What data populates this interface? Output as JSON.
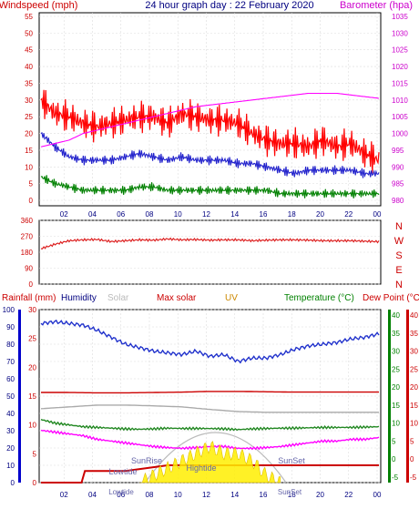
{
  "chart_data": [
    {
      "type": "line",
      "title": "24 hour graph day : 22 February 2020",
      "left_axis_label": "Windspeed (mph)",
      "right_axis_label": "Barometer (hpa)",
      "x_ticks": [
        "02",
        "04",
        "06",
        "08",
        "10",
        "12",
        "14",
        "16",
        "18",
        "20",
        "22",
        "00"
      ],
      "left_ylim": [
        0,
        55
      ],
      "left_ticks": [
        "0",
        "5",
        "10",
        "15",
        "20",
        "25",
        "30",
        "35",
        "40",
        "45",
        "50",
        "55"
      ],
      "right_ylim": [
        980,
        1035
      ],
      "right_ticks": [
        "980",
        "985",
        "990",
        "995",
        "1000",
        "1005",
        "1010",
        "1015",
        "1020",
        "1025",
        "1030",
        "1035"
      ],
      "series": [
        {
          "color": "#ff0000",
          "axis": "left",
          "x": [
            0,
            1,
            2,
            3,
            4,
            5,
            6,
            7,
            8,
            9,
            10,
            11,
            12,
            13,
            14,
            15,
            16,
            17,
            18,
            19,
            20,
            21,
            22,
            23,
            24
          ],
          "y": [
            30,
            26,
            25,
            23,
            22,
            23,
            24,
            25,
            25,
            23,
            26,
            25,
            24,
            24,
            23,
            20,
            18,
            17,
            17,
            16,
            18,
            16,
            17,
            14,
            12
          ]
        },
        {
          "color": "#2222cc",
          "axis": "left",
          "x": [
            0,
            1,
            2,
            3,
            4,
            5,
            6,
            7,
            8,
            9,
            10,
            11,
            12,
            13,
            14,
            15,
            16,
            17,
            18,
            19,
            20,
            21,
            22,
            23,
            24
          ],
          "y": [
            20,
            16,
            13,
            12,
            12,
            12,
            13,
            14,
            13,
            12,
            13,
            12,
            12,
            12,
            11,
            11,
            10,
            9,
            8,
            9,
            9,
            9,
            9,
            8,
            8
          ]
        },
        {
          "color": "#008000",
          "axis": "left",
          "x": [
            0,
            1,
            2,
            3,
            4,
            5,
            6,
            7,
            8,
            9,
            10,
            11,
            12,
            13,
            14,
            15,
            16,
            17,
            18,
            19,
            20,
            21,
            22,
            23,
            24
          ],
          "y": [
            7,
            5,
            4,
            3,
            3,
            3,
            3,
            4,
            4,
            3,
            3,
            3,
            3,
            3,
            3,
            3,
            3,
            2,
            2,
            2,
            2,
            2,
            2,
            2,
            2
          ]
        },
        {
          "color": "#ff00ff",
          "axis": "right",
          "x": [
            0,
            1,
            2,
            3,
            4,
            5,
            6,
            7,
            8,
            9,
            10,
            11,
            12,
            13,
            14,
            15,
            16,
            17,
            18,
            19,
            20,
            21,
            22,
            23,
            24
          ],
          "y": [
            996,
            997,
            998,
            1000,
            1001,
            1002,
            1003,
            1004,
            1005,
            1006,
            1007,
            1008,
            1008.5,
            1009,
            1009.5,
            1010,
            1010.5,
            1011,
            1011.5,
            1012,
            1012,
            1012,
            1011.5,
            1011,
            1010.5
          ]
        }
      ]
    },
    {
      "type": "line",
      "y_ticks": [
        "0",
        "90",
        "180",
        "270",
        "360"
      ],
      "ylim": [
        0,
        360
      ],
      "compass_labels": [
        "N",
        "W",
        "S",
        "E",
        "N"
      ],
      "series": [
        {
          "color": "#dd2222",
          "x": [
            0,
            1,
            2,
            3,
            4,
            5,
            6,
            7,
            8,
            9,
            10,
            11,
            12,
            13,
            14,
            15,
            16,
            17,
            18,
            19,
            20,
            21,
            22,
            23,
            24
          ],
          "y": [
            200,
            225,
            245,
            250,
            252,
            240,
            245,
            250,
            248,
            255,
            250,
            252,
            248,
            250,
            250,
            245,
            248,
            250,
            250,
            248,
            245,
            245,
            245,
            242,
            240
          ]
        }
      ]
    },
    {
      "type": "line",
      "legend": [
        "Rainfall (mm)",
        "Humidity",
        "Solar",
        "Max solar",
        "UV",
        "Temperature (°C)",
        "Dew Point (°C)"
      ],
      "legend_colors": [
        "#cc0000",
        "#000080",
        "#bbbbbb",
        "#cc0000",
        "#cc8800",
        "#008000",
        "#cc0000"
      ],
      "left_ticks": [
        "0",
        "10",
        "20",
        "30",
        "40",
        "50",
        "60",
        "70",
        "80",
        "90",
        "100"
      ],
      "left2_ticks": [
        "0",
        "5",
        "10",
        "15",
        "20",
        "25",
        "30"
      ],
      "right_ticks": [
        "-5",
        "0",
        "5",
        "10",
        "15",
        "20",
        "25",
        "30",
        "35",
        "40"
      ],
      "right2_ticks": [
        "-5",
        "0",
        "5",
        "10",
        "15",
        "20",
        "25",
        "30",
        "35",
        "40"
      ],
      "x_ticks": [
        "02",
        "04",
        "06",
        "08",
        "10",
        "12",
        "14",
        "16",
        "18",
        "20",
        "22",
        "00"
      ],
      "annotations": [
        "Lowtide",
        "SunRise",
        "Hightide",
        "SunSet",
        "Lowtide",
        "SunSet"
      ],
      "series": [
        {
          "name": "Humidity",
          "color": "#2233cc",
          "unit": "%",
          "x": [
            0,
            1,
            2,
            3,
            4,
            5,
            6,
            7,
            8,
            9,
            10,
            11,
            12,
            13,
            14,
            15,
            16,
            17,
            18,
            19,
            20,
            21,
            22,
            23,
            24
          ],
          "y": [
            92,
            93,
            92,
            91,
            88,
            84,
            80,
            78,
            76,
            75,
            74,
            76,
            73,
            74,
            70,
            72,
            72,
            74,
            77,
            79,
            80,
            81,
            83,
            84,
            86
          ]
        },
        {
          "name": "Max solar",
          "color": "#cc0000",
          "unit": "°C",
          "x": [
            0,
            2,
            4,
            6,
            8,
            10,
            12,
            14,
            16,
            18,
            20,
            22,
            24
          ],
          "y": [
            18.5,
            18.5,
            18.4,
            18.4,
            18.5,
            18.6,
            18.8,
            18.8,
            18.7,
            18.6,
            18.6,
            18.6,
            18.6
          ]
        },
        {
          "name": "Solar",
          "color": "#aaaaaa",
          "unit": "°C",
          "x": [
            0,
            2,
            4,
            6,
            8,
            10,
            12,
            14,
            16,
            18,
            20,
            22,
            24
          ],
          "y": [
            14,
            14.5,
            15,
            15,
            14.8,
            14.5,
            13.8,
            13.2,
            13,
            13,
            13,
            13,
            13
          ]
        },
        {
          "name": "Temperature (°C)",
          "color": "#228822",
          "unit": "°C",
          "x": [
            0,
            1,
            2,
            3,
            4,
            5,
            6,
            7,
            8,
            9,
            10,
            11,
            12,
            13,
            14,
            15,
            16,
            17,
            18,
            19,
            20,
            21,
            22,
            23,
            24
          ],
          "y": [
            11,
            10,
            9.5,
            9,
            8.8,
            8.6,
            8.4,
            8.3,
            8.4,
            8.6,
            8.5,
            8.5,
            8.5,
            8.4,
            8.2,
            8.4,
            8.5,
            8.6,
            8.6,
            8.7,
            8.8,
            8.8,
            8.8,
            8.9,
            9
          ]
        },
        {
          "name": "Dew Point (°C)",
          "color": "#ff00ff",
          "unit": "°C",
          "x": [
            0,
            1,
            2,
            3,
            4,
            5,
            6,
            7,
            8,
            9,
            10,
            11,
            12,
            13,
            14,
            15,
            16,
            17,
            18,
            19,
            20,
            21,
            22,
            23,
            24
          ],
          "y": [
            8,
            7.5,
            7,
            6.5,
            5.5,
            5,
            4.5,
            4,
            3.5,
            3.2,
            3,
            3.2,
            3.5,
            3.5,
            3,
            3,
            3.2,
            3.5,
            4,
            4.5,
            5,
            5,
            5.5,
            5.5,
            6
          ]
        },
        {
          "name": "Rainfall (mm)",
          "color": "#cc0000",
          "unit": "mm",
          "x": [
            0,
            3,
            3.1,
            6,
            9,
            12,
            15,
            18,
            21,
            24
          ],
          "y": [
            0,
            0,
            2,
            2,
            3,
            3,
            3,
            3,
            3,
            3
          ]
        },
        {
          "name": "UV",
          "color": "#ffee00",
          "unit": "uv",
          "x": [
            7,
            8,
            9,
            10,
            11,
            12,
            13,
            14,
            15,
            16,
            17
          ],
          "y": [
            0,
            1,
            2,
            3,
            4,
            5,
            4,
            4,
            3,
            1,
            0
          ]
        }
      ]
    }
  ]
}
